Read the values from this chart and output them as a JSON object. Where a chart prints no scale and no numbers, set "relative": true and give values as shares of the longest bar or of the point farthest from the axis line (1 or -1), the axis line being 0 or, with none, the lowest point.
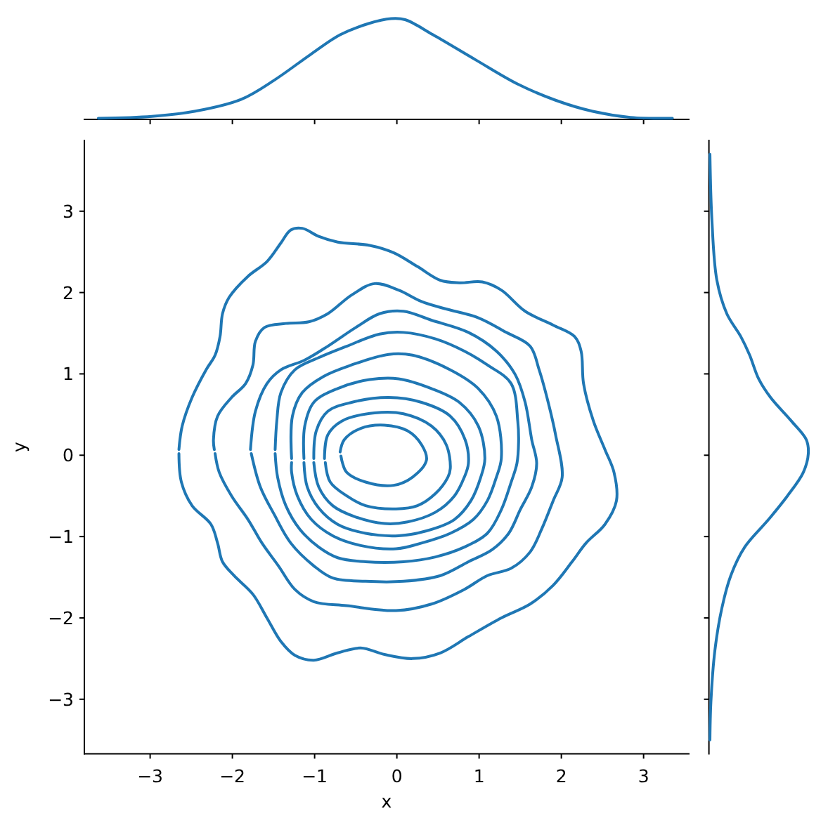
{
  "chart_data": [
    {
      "type": "line",
      "relative": true,
      "xlim": [
        -3.8,
        3.55
      ],
      "xticks": [
        -3,
        -2,
        -1,
        0,
        1,
        2,
        3
      ],
      "tick_labels": false,
      "series": [
        {
          "color": "#1f77b4",
          "x": [
            -3.63,
            -2.98,
            -2.46,
            -1.89,
            -1.49,
            -1.04,
            -0.69,
            -0.35,
            -0.07,
            0.1,
            0.44,
            0.96,
            1.47,
            1.93,
            2.38,
            2.84,
            3.35
          ],
          "values": [
            0.01,
            0.03,
            0.08,
            0.2,
            0.39,
            0.65,
            0.84,
            0.95,
            1,
            0.99,
            0.84,
            0.59,
            0.35,
            0.19,
            0.08,
            0.02,
            0.01
          ]
        }
      ]
    },
    {
      "type": "line",
      "xlabel": "x",
      "ylabel": "y",
      "xlim": [
        -3.8,
        3.55
      ],
      "ylim": [
        -3.67,
        3.87
      ],
      "xticks": [
        {
          "value": -3,
          "label": "−3"
        },
        {
          "value": -2,
          "label": "−2"
        },
        {
          "value": -1,
          "label": "−1"
        },
        0,
        1,
        2,
        3
      ],
      "yticks": [
        {
          "value": -3,
          "label": "−3"
        },
        {
          "value": -2,
          "label": "−2"
        },
        {
          "value": -1,
          "label": "−1"
        },
        0,
        1,
        2,
        3
      ],
      "series": [
        {
          "color": "#1f77b4",
          "x": [
            -2.65,
            -2.61,
            -2.49,
            -2.32,
            -2.21,
            -2.15,
            -2.12,
            -2.04,
            -1.81,
            -1.58,
            -1.41,
            -1.29,
            -1.15,
            -0.95,
            -0.72,
            -0.33,
            -0.04,
            0.25,
            0.53,
            0.76,
            1.04,
            1.27,
            1.56,
            1.9,
            2.16,
            2.24,
            2.27,
            2.39,
            2.53,
            2.64,
            2.67,
            2.53,
            2.3,
            2.13,
            1.9,
            1.62,
            1.27,
            0.87,
            0.53,
            0.19,
            -0.15,
            -0.44,
            -0.72,
            -1.01,
            -1.24,
            -1.41,
            -1.58,
            -1.75,
            -1.98,
            -2.12,
            -2.18,
            -2.26,
            -2.49,
            -2.62,
            -2.65
          ],
          "values": [
            0.07,
            0.36,
            0.71,
            1.05,
            1.23,
            1.46,
            1.74,
            1.94,
            2.2,
            2.38,
            2.61,
            2.77,
            2.79,
            2.69,
            2.62,
            2.58,
            2.49,
            2.32,
            2.15,
            2.12,
            2.13,
            2.03,
            1.77,
            1.6,
            1.46,
            1.28,
            0.88,
            0.42,
            0.07,
            -0.21,
            -0.56,
            -0.85,
            -1.08,
            -1.31,
            -1.6,
            -1.83,
            -2,
            -2.23,
            -2.43,
            -2.5,
            -2.45,
            -2.37,
            -2.43,
            -2.52,
            -2.46,
            -2.29,
            -2,
            -1.71,
            -1.48,
            -1.31,
            -1.08,
            -0.85,
            -0.62,
            -0.33,
            0.02
          ]
        },
        {
          "color": "#1f77b4",
          "x": [
            -2.22,
            -2.23,
            -2.18,
            -2.01,
            -1.84,
            -1.75,
            -1.72,
            -1.61,
            -1.35,
            -1.07,
            -0.84,
            -0.55,
            -0.27,
            0.02,
            0.3,
            0.59,
            0.99,
            1.33,
            1.62,
            1.73,
            1.84,
            1.93,
            2.01,
            1.9,
            1.76,
            1.62,
            1.39,
            1.1,
            0.82,
            0.42,
            -0.01,
            -0.61,
            -1.01,
            -1.24,
            -1.44,
            -1.64,
            -1.81,
            -2.01,
            -2.16,
            -2.21
          ],
          "values": [
            0.07,
            0.19,
            0.48,
            0.71,
            0.88,
            1.11,
            1.4,
            1.57,
            1.62,
            1.64,
            1.74,
            1.97,
            2.11,
            2.03,
            1.89,
            1.8,
            1.69,
            1.51,
            1.34,
            1.05,
            0.65,
            0.25,
            -0.27,
            -0.56,
            -0.91,
            -1.19,
            -1.39,
            -1.48,
            -1.65,
            -1.83,
            -1.91,
            -1.85,
            -1.8,
            -1.65,
            -1.36,
            -1.08,
            -0.79,
            -0.5,
            -0.21,
            0.02
          ]
        },
        {
          "color": "#1f77b4",
          "x": [
            -1.78,
            -1.72,
            -1.58,
            -1.41,
            -1.12,
            -0.84,
            -0.5,
            -0.21,
            0.08,
            0.42,
            0.87,
            1.21,
            1.44,
            1.56,
            1.64,
            1.7,
            1.64,
            1.5,
            1.36,
            1.16,
            0.87,
            0.53,
            0.08,
            -0.38,
            -0.78,
            -1.01,
            -1.29,
            -1.49,
            -1.66,
            -1.77
          ],
          "values": [
            0.07,
            0.54,
            0.88,
            1.05,
            1.17,
            1.34,
            1.57,
            1.74,
            1.77,
            1.66,
            1.51,
            1.28,
            0.99,
            0.65,
            0.19,
            -0.1,
            -0.39,
            -0.67,
            -0.96,
            -1.16,
            -1.31,
            -1.48,
            -1.55,
            -1.55,
            -1.51,
            -1.36,
            -1.08,
            -0.73,
            -0.39,
            0.02
          ]
        },
        {
          "color": "#1f77b4",
          "x": [
            -1.48,
            -1.46,
            -1.41,
            -1.24,
            -0.95,
            -0.61,
            -0.21,
            0.08,
            0.47,
            0.82,
            1.1,
            1.39,
            1.47,
            1.48,
            1.46,
            1.39,
            1.27,
            1.1,
            0.82,
            0.47,
            0.08,
            -0.38,
            -0.72,
            -0.95,
            -1.18,
            -1.35,
            -1.45,
            -1.48
          ],
          "values": [
            0.07,
            0.42,
            0.77,
            1.05,
            1.2,
            1.34,
            1.49,
            1.51,
            1.43,
            1.28,
            1.11,
            0.88,
            0.42,
            0.16,
            -0.1,
            -0.33,
            -0.67,
            -0.96,
            -1.13,
            -1.25,
            -1.31,
            -1.31,
            -1.26,
            -1.13,
            -0.91,
            -0.62,
            -0.27,
            0.02
          ]
        },
        {
          "color": "#1f77b4",
          "x": [
            -1.28,
            -1.27,
            -1.15,
            -0.89,
            -0.55,
            -0.1,
            0.19,
            0.65,
            0.99,
            1.21,
            1.27,
            1.21,
            1.1,
            0.93,
            0.65,
            0.3,
            -0.01,
            -0.44,
            -0.78,
            -1.04,
            -1.21,
            -1.28,
            -1.28
          ],
          "values": [
            -0.04,
            0.48,
            0.77,
            0.97,
            1.11,
            1.24,
            1.23,
            1.05,
            0.82,
            0.48,
            -0.04,
            -0.27,
            -0.56,
            -0.79,
            -0.96,
            -1.08,
            -1.15,
            -1.11,
            -0.99,
            -0.79,
            -0.5,
            -0.21,
            -0.09
          ]
        },
        {
          "color": "#1f77b4",
          "x": [
            -1.13,
            -1.12,
            -1.01,
            -0.72,
            -0.33,
            0.02,
            0.42,
            0.76,
            0.99,
            1.07,
            1.02,
            0.9,
            0.7,
            0.36,
            0.02,
            -0.38,
            -0.72,
            -0.95,
            -1.09,
            -1.13
          ],
          "values": [
            -0.04,
            0.36,
            0.65,
            0.82,
            0.93,
            0.94,
            0.82,
            0.65,
            0.36,
            -0.04,
            -0.27,
            -0.56,
            -0.79,
            -0.93,
            -0.99,
            -0.96,
            -0.85,
            -0.65,
            -0.39,
            -0.09
          ]
        },
        {
          "color": "#1f77b4",
          "x": [
            -1.01,
            -0.98,
            -0.84,
            -0.55,
            -0.1,
            0.3,
            0.65,
            0.83,
            0.87,
            0.82,
            0.7,
            0.47,
            0.13,
            -0.15,
            -0.5,
            -0.78,
            -0.95,
            -1.01
          ],
          "values": [
            -0.04,
            0.3,
            0.54,
            0.65,
            0.71,
            0.65,
            0.48,
            0.19,
            -0.1,
            -0.27,
            -0.5,
            -0.7,
            -0.82,
            -0.84,
            -0.76,
            -0.62,
            -0.39,
            -0.09
          ]
        },
        {
          "color": "#1f77b4",
          "x": [
            -0.88,
            -0.84,
            -0.67,
            -0.27,
            0.08,
            0.42,
            0.6,
            0.65,
            0.62,
            0.47,
            0.25,
            -0.01,
            -0.38,
            -0.61,
            -0.81,
            -0.87
          ],
          "values": [
            -0.04,
            0.25,
            0.42,
            0.52,
            0.51,
            0.36,
            0.13,
            -0.16,
            -0.27,
            -0.47,
            -0.62,
            -0.66,
            -0.62,
            -0.5,
            -0.33,
            -0.09
          ]
        },
        {
          "color": "#1f77b4",
          "x": [
            -0.69,
            -0.64,
            -0.44,
            -0.15,
            0.13,
            0.3,
            0.36,
            0.19,
            -0.04,
            -0.38,
            -0.61,
            -0.66,
            -0.68
          ],
          "values": [
            0.04,
            0.19,
            0.33,
            0.37,
            0.3,
            0.13,
            -0.06,
            -0.27,
            -0.37,
            -0.33,
            -0.21,
            -0.1,
            -0.01
          ]
        }
      ]
    },
    {
      "type": "line",
      "relative": true,
      "orientation": "horizontal",
      "ylim": [
        -3.67,
        3.87
      ],
      "yticks": [
        -3,
        -2,
        -1,
        0,
        1,
        2,
        3
      ],
      "tick_labels": false,
      "series": [
        {
          "color": "#1f77b4",
          "x": [
            3.7,
            2.89,
            2.15,
            1.74,
            1.46,
            1.23,
            0.94,
            0.71,
            0.42,
            0.19,
            0.02,
            -0.21,
            -0.5,
            -0.79,
            -1.13,
            -1.48,
            -1.88,
            -2.4,
            -3.03,
            -3.5
          ],
          "values": [
            0.01,
            0.03,
            0.08,
            0.18,
            0.32,
            0.41,
            0.5,
            0.62,
            0.83,
            0.98,
            1,
            0.95,
            0.79,
            0.6,
            0.36,
            0.22,
            0.13,
            0.06,
            0.02,
            0.01
          ]
        }
      ]
    }
  ]
}
